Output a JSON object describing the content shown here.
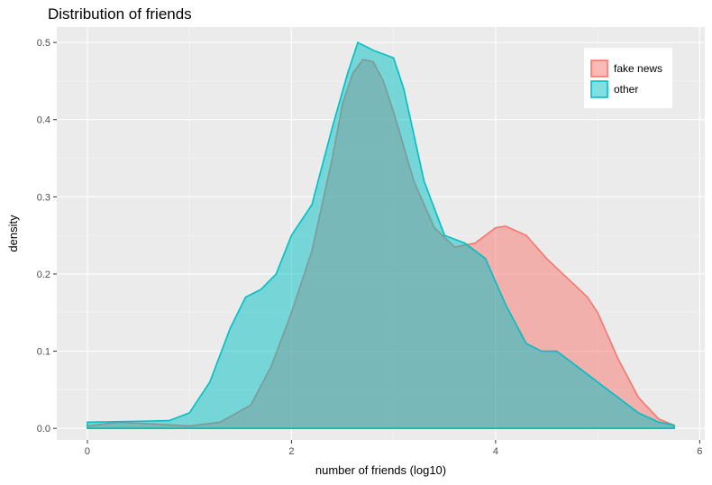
{
  "chart_data": {
    "type": "area",
    "title": "Distribution of friends",
    "xlabel": "number of friends (log10)",
    "ylabel": "density",
    "xlim": [
      -0.3,
      6.05
    ],
    "ylim": [
      -0.015,
      0.52
    ],
    "x_ticks": [
      0,
      2,
      4,
      6
    ],
    "x_tick_labels": [
      "0",
      "2",
      "4",
      "6"
    ],
    "y_ticks": [
      0.0,
      0.1,
      0.2,
      0.3,
      0.4,
      0.5
    ],
    "y_tick_labels": [
      "0.0",
      "0.1",
      "0.2",
      "0.3",
      "0.4",
      "0.5"
    ],
    "grid": true,
    "legend_position": "top-right",
    "series": [
      {
        "name": "fake news",
        "line_color": "#F8766D",
        "fill_color": "#F8766D",
        "points": [
          [
            0,
            0.003
          ],
          [
            0.3,
            0.008
          ],
          [
            0.6,
            0.006
          ],
          [
            1.0,
            0.003
          ],
          [
            1.3,
            0.008
          ],
          [
            1.6,
            0.03
          ],
          [
            1.8,
            0.08
          ],
          [
            2.0,
            0.15
          ],
          [
            2.2,
            0.23
          ],
          [
            2.4,
            0.35
          ],
          [
            2.5,
            0.42
          ],
          [
            2.6,
            0.46
          ],
          [
            2.7,
            0.478
          ],
          [
            2.8,
            0.475
          ],
          [
            2.9,
            0.45
          ],
          [
            3.0,
            0.41
          ],
          [
            3.2,
            0.32
          ],
          [
            3.4,
            0.26
          ],
          [
            3.6,
            0.235
          ],
          [
            3.8,
            0.24
          ],
          [
            4.0,
            0.26
          ],
          [
            4.1,
            0.262
          ],
          [
            4.3,
            0.25
          ],
          [
            4.5,
            0.22
          ],
          [
            4.7,
            0.195
          ],
          [
            4.9,
            0.17
          ],
          [
            5.0,
            0.15
          ],
          [
            5.2,
            0.09
          ],
          [
            5.4,
            0.04
          ],
          [
            5.6,
            0.012
          ],
          [
            5.75,
            0.004
          ]
        ]
      },
      {
        "name": "other",
        "line_color": "#00BFC4",
        "fill_color": "#00BFC4",
        "points": [
          [
            0,
            0.008
          ],
          [
            0.4,
            0.009
          ],
          [
            0.8,
            0.01
          ],
          [
            1.0,
            0.02
          ],
          [
            1.2,
            0.06
          ],
          [
            1.4,
            0.13
          ],
          [
            1.55,
            0.17
          ],
          [
            1.7,
            0.18
          ],
          [
            1.85,
            0.2
          ],
          [
            2.0,
            0.25
          ],
          [
            2.2,
            0.29
          ],
          [
            2.4,
            0.39
          ],
          [
            2.55,
            0.46
          ],
          [
            2.65,
            0.5
          ],
          [
            2.8,
            0.49
          ],
          [
            3.0,
            0.48
          ],
          [
            3.1,
            0.44
          ],
          [
            3.3,
            0.32
          ],
          [
            3.5,
            0.25
          ],
          [
            3.7,
            0.24
          ],
          [
            3.9,
            0.22
          ],
          [
            4.1,
            0.16
          ],
          [
            4.3,
            0.11
          ],
          [
            4.45,
            0.1
          ],
          [
            4.6,
            0.1
          ],
          [
            4.8,
            0.08
          ],
          [
            5.0,
            0.06
          ],
          [
            5.2,
            0.04
          ],
          [
            5.4,
            0.02
          ],
          [
            5.6,
            0.008
          ],
          [
            5.75,
            0.004
          ]
        ]
      }
    ]
  }
}
